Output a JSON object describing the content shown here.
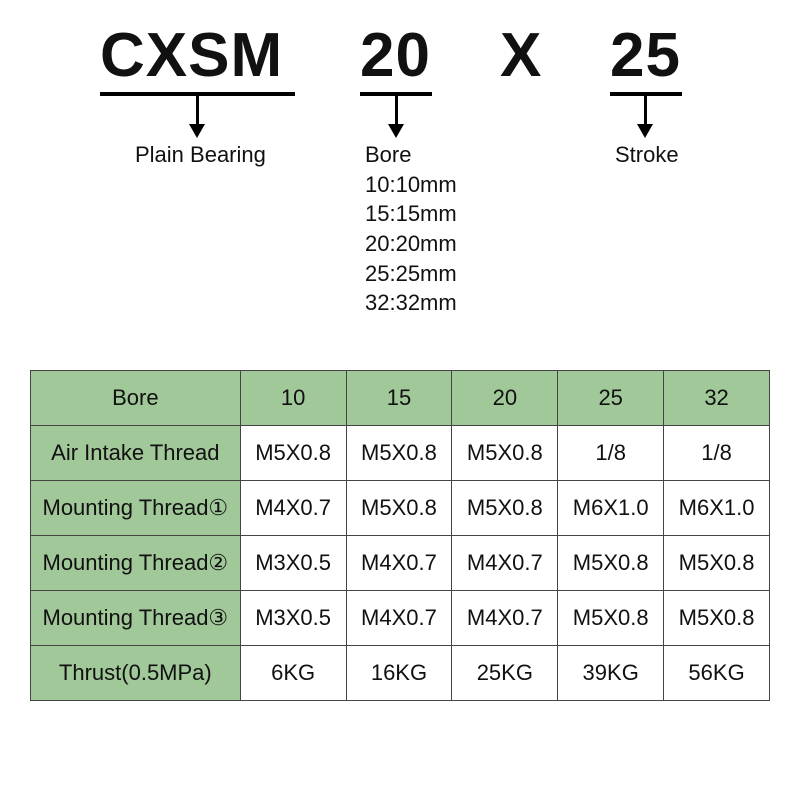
{
  "colors": {
    "header_bg": "#a1c898",
    "rowlabel_bg": "#a1c898",
    "border": "#444444",
    "text": "#111111",
    "background": "#ffffff"
  },
  "code": {
    "part1": "CXSM",
    "part2": "20",
    "sep": "X",
    "part3": "25"
  },
  "annotations": {
    "part1_label": "Plain Bearing",
    "part2_title": "Bore",
    "part2_lines": [
      "10:10mm",
      "15:15mm",
      "20:20mm",
      "25:25mm",
      "32:32mm"
    ],
    "part3_label": "Stroke"
  },
  "table": {
    "columns": [
      "Bore",
      "10",
      "15",
      "20",
      "25",
      "32"
    ],
    "rows": [
      {
        "label": "Air Intake Thread",
        "cells": [
          "M5X0.8",
          "M5X0.8",
          "M5X0.8",
          "1/8",
          "1/8"
        ]
      },
      {
        "label": "Mounting Thread①",
        "cells": [
          "M4X0.7",
          "M5X0.8",
          "M5X0.8",
          "M6X1.0",
          "M6X1.0"
        ]
      },
      {
        "label": "Mounting Thread②",
        "cells": [
          "M3X0.5",
          "M4X0.7",
          "M4X0.7",
          "M5X0.8",
          "M5X0.8"
        ]
      },
      {
        "label": "Mounting Thread③",
        "cells": [
          "M3X0.5",
          "M4X0.7",
          "M4X0.7",
          "M5X0.8",
          "M5X0.8"
        ]
      },
      {
        "label": "Thrust(0.5MPa)",
        "cells": [
          "6KG",
          "16KG",
          "25KG",
          "39KG",
          "56KG"
        ]
      }
    ]
  }
}
